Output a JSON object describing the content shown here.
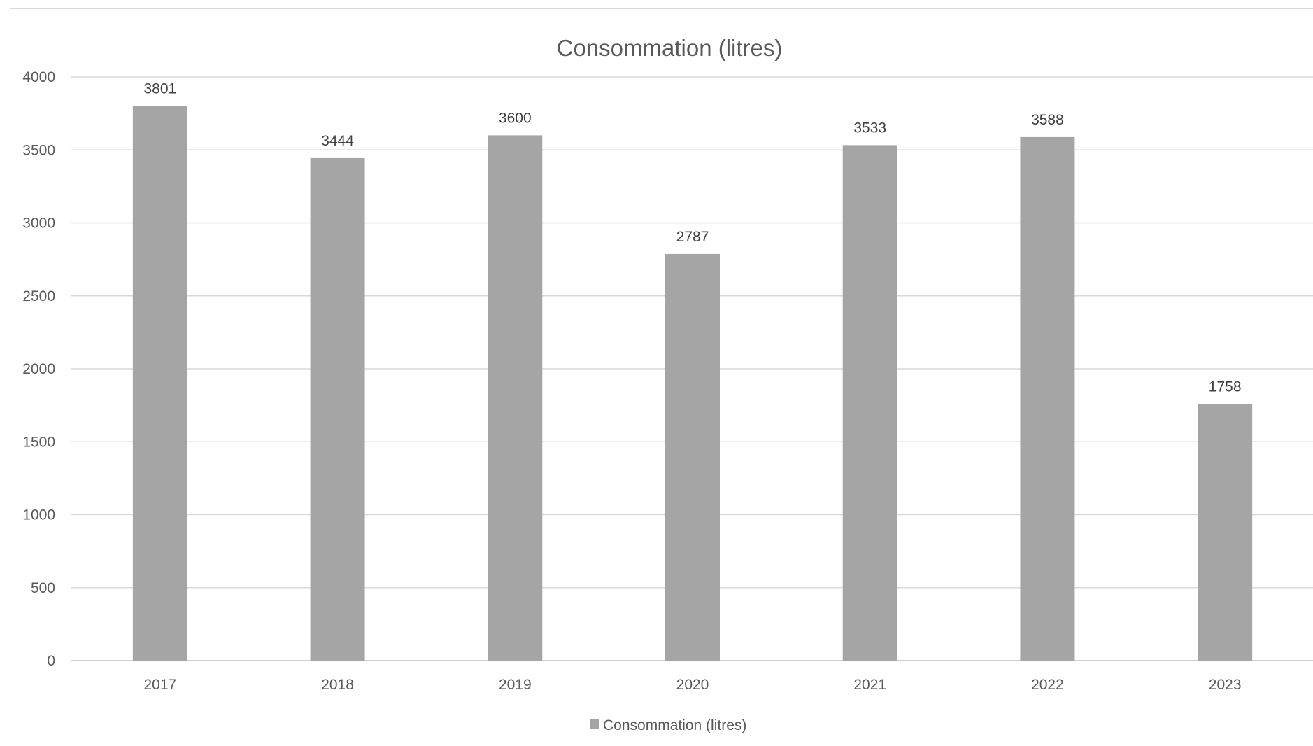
{
  "chart_data": {
    "type": "bar",
    "title": "Consommation (litres)",
    "xlabel": "",
    "ylabel": "",
    "categories": [
      "2017",
      "2018",
      "2019",
      "2020",
      "2021",
      "2022",
      "2023"
    ],
    "series": [
      {
        "name": "Consommation (litres)",
        "values": [
          3801,
          3444,
          3600,
          2787,
          3533,
          3588,
          1758
        ],
        "color": "#a5a5a5"
      }
    ],
    "ylim": [
      0,
      4000
    ],
    "yticks": [
      0,
      500,
      1000,
      1500,
      2000,
      2500,
      3000,
      3500,
      4000
    ],
    "data_labels": true,
    "grid": "horizontal",
    "legend": "bottom"
  }
}
